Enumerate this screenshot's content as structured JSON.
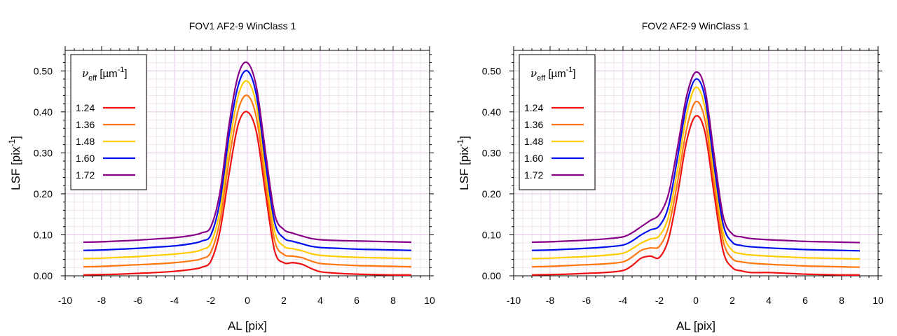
{
  "chart_data": [
    {
      "type": "line",
      "title": "FOV1 AF2-9 WinClass 1",
      "xlabel": "AL [pix]",
      "ylabel_main": "LSF [pix",
      "ylabel_sup": "-1",
      "ylabel_end": "]",
      "xlim": [
        -10,
        10
      ],
      "ylim": [
        0,
        0.55
      ],
      "x_ticks": [
        "-10",
        "-8",
        "-6",
        "-4",
        "-2",
        "0",
        "2",
        "4",
        "6",
        "8",
        "10"
      ],
      "y_ticks": [
        "0.00",
        "0.10",
        "0.20",
        "0.30",
        "0.40",
        "0.50"
      ],
      "grid": true,
      "legend_position": "top-left",
      "legend_title_main": "ν",
      "legend_title_sub": "eff",
      "legend_title_unit": " [µm",
      "legend_title_sup": "-1",
      "legend_title_end": "]",
      "x": [
        -9,
        -8,
        -7,
        -6,
        -5,
        -4,
        -3,
        -2.5,
        -2,
        -1.5,
        -1,
        -0.5,
        0,
        0.5,
        1,
        1.5,
        2,
        2.5,
        3,
        3.5,
        4,
        5,
        6,
        7,
        8,
        9
      ],
      "series": [
        {
          "name": "1.24",
          "color": "#ee1111",
          "values": [
            0.002,
            0.003,
            0.004,
            0.006,
            0.008,
            0.011,
            0.016,
            0.021,
            0.036,
            0.11,
            0.25,
            0.37,
            0.4,
            0.35,
            0.2,
            0.06,
            0.032,
            0.032,
            0.028,
            0.018,
            0.01,
            0.006,
            0.004,
            0.003,
            0.002,
            0.002
          ]
        },
        {
          "name": "1.36",
          "color": "#ff7711",
          "values": [
            0.022,
            0.023,
            0.025,
            0.027,
            0.029,
            0.032,
            0.037,
            0.042,
            0.058,
            0.135,
            0.285,
            0.405,
            0.44,
            0.385,
            0.225,
            0.085,
            0.052,
            0.048,
            0.044,
            0.036,
            0.03,
            0.027,
            0.025,
            0.024,
            0.023,
            0.022
          ]
        },
        {
          "name": "1.48",
          "color": "#ffcc00",
          "values": [
            0.042,
            0.043,
            0.045,
            0.047,
            0.05,
            0.053,
            0.058,
            0.064,
            0.08,
            0.16,
            0.315,
            0.44,
            0.475,
            0.415,
            0.25,
            0.108,
            0.072,
            0.066,
            0.061,
            0.054,
            0.05,
            0.047,
            0.045,
            0.044,
            0.043,
            0.042
          ]
        },
        {
          "name": "1.60",
          "color": "#0011ee",
          "values": [
            0.062,
            0.063,
            0.065,
            0.067,
            0.07,
            0.073,
            0.079,
            0.085,
            0.1,
            0.183,
            0.345,
            0.465,
            0.5,
            0.44,
            0.275,
            0.13,
            0.092,
            0.084,
            0.078,
            0.072,
            0.069,
            0.067,
            0.065,
            0.064,
            0.063,
            0.062
          ]
        },
        {
          "name": "1.72",
          "color": "#880088",
          "values": [
            0.082,
            0.083,
            0.085,
            0.087,
            0.09,
            0.093,
            0.099,
            0.105,
            0.12,
            0.205,
            0.37,
            0.49,
            0.52,
            0.46,
            0.3,
            0.15,
            0.113,
            0.104,
            0.097,
            0.091,
            0.088,
            0.086,
            0.085,
            0.084,
            0.083,
            0.082
          ]
        }
      ]
    },
    {
      "type": "line",
      "title": "FOV2 AF2-9 WinClass 1",
      "xlabel": "AL [pix]",
      "ylabel_main": "LSF [pix",
      "ylabel_sup": "-1",
      "ylabel_end": "]",
      "xlim": [
        -10,
        10
      ],
      "ylim": [
        0,
        0.55
      ],
      "x_ticks": [
        "-10",
        "-8",
        "-6",
        "-4",
        "-2",
        "0",
        "2",
        "4",
        "6",
        "8",
        "10"
      ],
      "y_ticks": [
        "0.00",
        "0.10",
        "0.20",
        "0.30",
        "0.40",
        "0.50"
      ],
      "grid": true,
      "legend_position": "top-left",
      "legend_title_main": "ν",
      "legend_title_sub": "eff",
      "legend_title_unit": " [µm",
      "legend_title_sup": "-1",
      "legend_title_end": "]",
      "x": [
        -9,
        -8,
        -7,
        -6,
        -5,
        -4,
        -3.5,
        -3,
        -2.5,
        -2,
        -1.5,
        -1,
        -0.5,
        0,
        0.5,
        1,
        1.5,
        2,
        2.5,
        3,
        4,
        5,
        6,
        7,
        8,
        9
      ],
      "series": [
        {
          "name": "1.24",
          "color": "#ee1111",
          "values": [
            0.002,
            0.003,
            0.004,
            0.006,
            0.008,
            0.013,
            0.025,
            0.043,
            0.048,
            0.045,
            0.09,
            0.2,
            0.33,
            0.39,
            0.35,
            0.2,
            0.06,
            0.02,
            0.012,
            0.008,
            0.008,
            0.006,
            0.004,
            0.003,
            0.002,
            0.002
          ]
        },
        {
          "name": "1.36",
          "color": "#ff7711",
          "values": [
            0.022,
            0.023,
            0.025,
            0.027,
            0.029,
            0.034,
            0.046,
            0.062,
            0.068,
            0.072,
            0.12,
            0.23,
            0.36,
            0.425,
            0.38,
            0.225,
            0.085,
            0.042,
            0.034,
            0.031,
            0.028,
            0.026,
            0.024,
            0.023,
            0.022,
            0.021
          ]
        },
        {
          "name": "1.48",
          "color": "#ffcc00",
          "values": [
            0.042,
            0.043,
            0.045,
            0.047,
            0.05,
            0.055,
            0.066,
            0.08,
            0.09,
            0.098,
            0.145,
            0.26,
            0.395,
            0.46,
            0.41,
            0.25,
            0.105,
            0.062,
            0.054,
            0.051,
            0.048,
            0.046,
            0.044,
            0.043,
            0.042,
            0.041
          ]
        },
        {
          "name": "1.60",
          "color": "#0011ee",
          "values": [
            0.062,
            0.063,
            0.065,
            0.067,
            0.07,
            0.075,
            0.085,
            0.1,
            0.112,
            0.122,
            0.17,
            0.29,
            0.42,
            0.48,
            0.435,
            0.27,
            0.125,
            0.082,
            0.074,
            0.071,
            0.068,
            0.066,
            0.064,
            0.063,
            0.062,
            0.061
          ]
        },
        {
          "name": "1.72",
          "color": "#880088",
          "values": [
            0.082,
            0.083,
            0.085,
            0.087,
            0.09,
            0.095,
            0.105,
            0.12,
            0.135,
            0.15,
            0.2,
            0.315,
            0.44,
            0.497,
            0.455,
            0.295,
            0.145,
            0.102,
            0.095,
            0.091,
            0.088,
            0.086,
            0.084,
            0.083,
            0.082,
            0.081
          ]
        }
      ]
    }
  ]
}
